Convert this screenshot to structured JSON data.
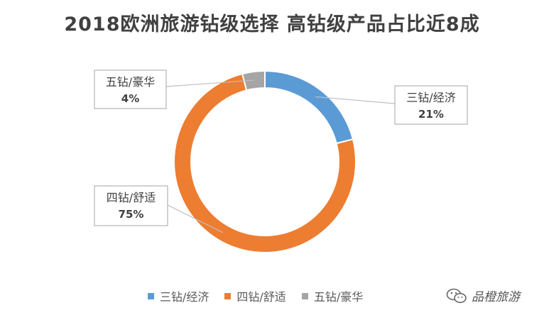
{
  "chart_data": {
    "type": "pie",
    "variant": "donut",
    "title": "2018欧洲旅游钻级选择 高钻级产品占比近8成",
    "categories": [
      "三钻/经济",
      "四钻/舒适",
      "五钻/豪华"
    ],
    "values": [
      21,
      75,
      4
    ],
    "value_labels": [
      "21%",
      "75%",
      "4%"
    ],
    "colors": [
      "#5B9BD5",
      "#ED7D31",
      "#A5A5A5"
    ],
    "legend_position": "bottom"
  },
  "watermark": {
    "text": "品橙旅游",
    "icon": "wechat-icon"
  }
}
